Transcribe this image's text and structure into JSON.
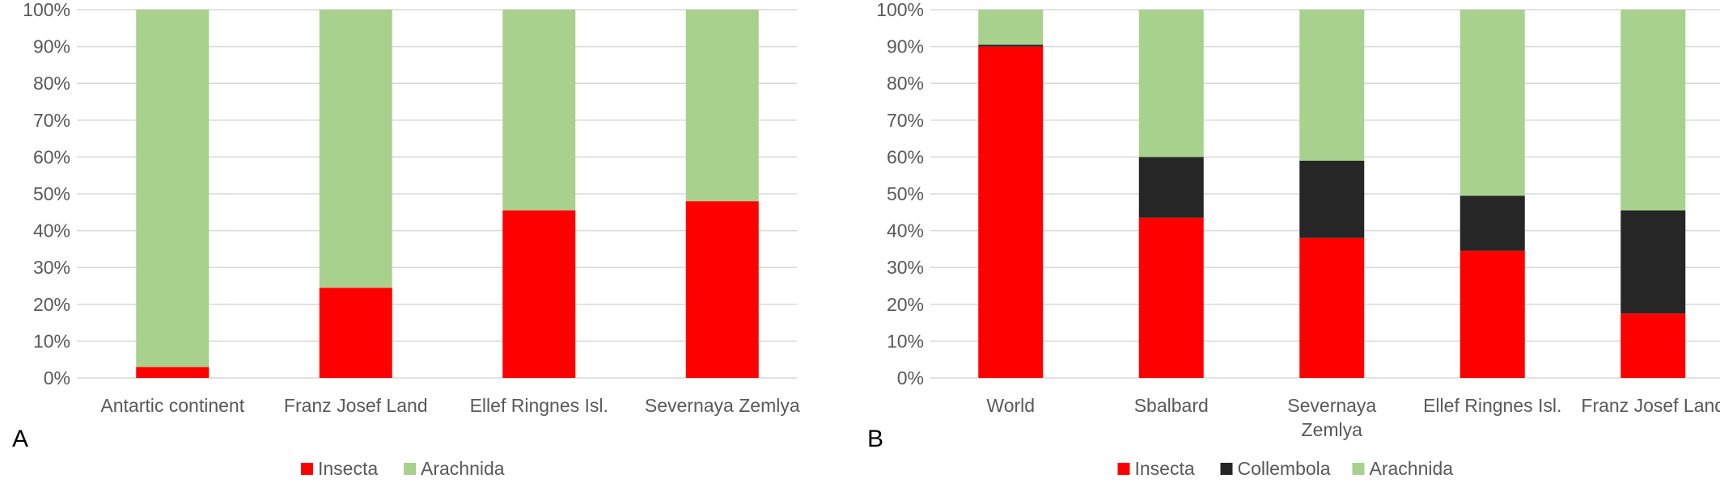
{
  "colors": {
    "insecta": "#FF0000",
    "collembola": "#262626",
    "arachnida": "#A9D18E",
    "grid": "#D9D9D9",
    "text": "#595959"
  },
  "chart_data": [
    {
      "type": "bar",
      "stacked": "percent",
      "panel_label": "A",
      "categories": [
        "Antartic continent",
        "Franz Josef Land",
        "Ellef Ringnes Isl.",
        "Severnaya Zemlya"
      ],
      "series": [
        {
          "name": "Insecta",
          "values": [
            3,
            24.5,
            45.5,
            48
          ]
        },
        {
          "name": "Arachnida",
          "values": [
            97,
            75.5,
            54.5,
            52
          ]
        }
      ],
      "yticks": [
        "0%",
        "10%",
        "20%",
        "30%",
        "40%",
        "50%",
        "60%",
        "70%",
        "80%",
        "90%",
        "100%"
      ],
      "ylim": [
        0,
        100
      ],
      "grid": true,
      "legend_position": "bottom"
    },
    {
      "type": "bar",
      "stacked": "percent",
      "panel_label": "B",
      "categories": [
        "World",
        "Sbalbard",
        "Severnaya Zemlya",
        "Ellef Ringnes Isl.",
        "Franz Josef Land"
      ],
      "series": [
        {
          "name": "Insecta",
          "values": [
            90,
            43.5,
            38,
            34.5,
            17.5
          ]
        },
        {
          "name": "Collembola",
          "values": [
            0.5,
            16.5,
            21,
            15,
            28
          ]
        },
        {
          "name": "Arachnida",
          "values": [
            9.5,
            40,
            41,
            50.5,
            54.5
          ]
        }
      ],
      "yticks": [
        "0%",
        "10%",
        "20%",
        "30%",
        "40%",
        "50%",
        "60%",
        "70%",
        "80%",
        "90%",
        "100%"
      ],
      "ylim": [
        0,
        100
      ],
      "grid": true,
      "legend_position": "bottom"
    }
  ]
}
